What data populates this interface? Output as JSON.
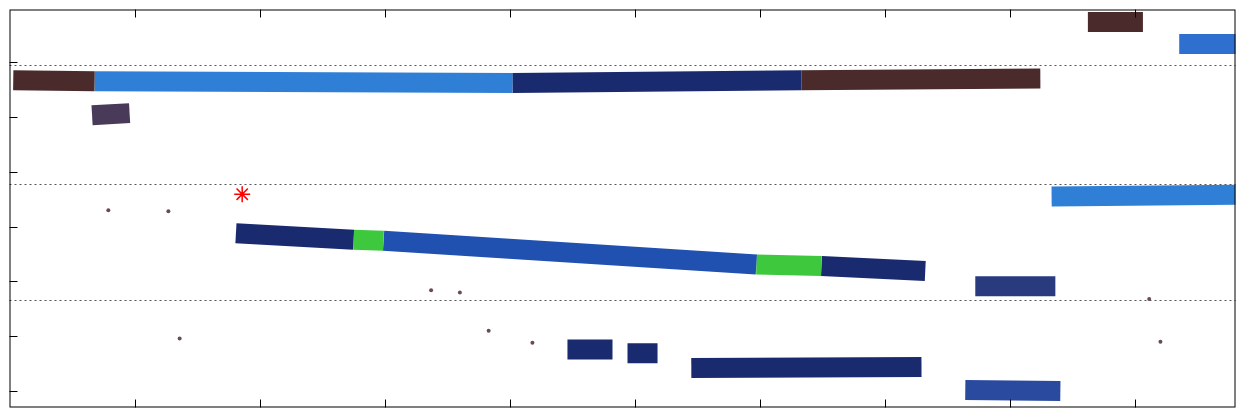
{
  "chart_data": {
    "type": "line",
    "xlim": [
      0,
      9.8
    ],
    "xticks": [
      1,
      2,
      3,
      4,
      5,
      6,
      7,
      8,
      9
    ],
    "ylim": [
      0,
      7.26
    ],
    "yticks": [
      0.3,
      1.3,
      2.3,
      3.3,
      4.3,
      5.3,
      6.3
    ],
    "tick_labels": false,
    "grid": false,
    "hlines": [
      6.24,
      4.08,
      1.96
    ],
    "series": [
      {
        "color": "#4a2a2a",
        "x": [
          0.03,
          0.68
        ],
        "values": [
          5.97,
          5.95
        ]
      },
      {
        "color": "#2f7fd6",
        "x": [
          0.68,
          4.02
        ],
        "values": [
          5.95,
          5.92
        ]
      },
      {
        "color": "#1a2a6e",
        "x": [
          4.02,
          6.33
        ],
        "values": [
          5.92,
          5.97
        ]
      },
      {
        "color": "#4a2a2a",
        "x": [
          6.33,
          8.24
        ],
        "values": [
          5.97,
          6.0
        ]
      },
      {
        "color": "#4a3a5a",
        "x": [
          0.66,
          0.96
        ],
        "values": [
          5.33,
          5.37
        ]
      },
      {
        "color": "#4a2a2a",
        "x": [
          8.62,
          9.06
        ],
        "values": [
          7.03,
          7.03
        ]
      },
      {
        "color": "#2f6fd0",
        "x": [
          9.35,
          9.85
        ],
        "values": [
          6.63,
          6.63
        ]
      },
      {
        "color": "#2f7fd6",
        "x": [
          8.33,
          9.85
        ],
        "values": [
          3.85,
          3.88
        ]
      },
      {
        "color": "#1a2a6e",
        "x": [
          1.81,
          2.75
        ],
        "values": [
          3.18,
          3.06
        ]
      },
      {
        "color": "#3ec83e",
        "x": [
          2.75,
          2.99
        ],
        "values": [
          3.06,
          3.04
        ]
      },
      {
        "color": "#2050b0",
        "x": [
          2.99,
          5.97
        ],
        "values": [
          3.04,
          2.61
        ]
      },
      {
        "color": "#3ec83e",
        "x": [
          5.97,
          6.49
        ],
        "values": [
          2.61,
          2.58
        ]
      },
      {
        "color": "#1a2a6e",
        "x": [
          6.49,
          7.32
        ],
        "values": [
          2.58,
          2.49
        ]
      },
      {
        "color": "#2a3a7e",
        "x": [
          7.72,
          8.36
        ],
        "values": [
          2.21,
          2.21
        ]
      },
      {
        "color": "#1a2a6e",
        "x": [
          4.46,
          4.82
        ],
        "values": [
          1.06,
          1.06
        ]
      },
      {
        "color": "#1a2a6e",
        "x": [
          4.94,
          5.18
        ],
        "values": [
          0.99,
          0.99
        ]
      },
      {
        "color": "#1a2a6e",
        "x": [
          5.45,
          7.29
        ],
        "values": [
          0.72,
          0.74
        ]
      },
      {
        "color": "#2a4aa0",
        "x": [
          7.64,
          8.4
        ],
        "values": [
          0.32,
          0.3
        ]
      },
      {
        "type": "scatter",
        "marker": "circle",
        "color": "#6a4a5a",
        "x": [
          0.79,
          1.27,
          3.37,
          3.6,
          3.83,
          4.18,
          1.36,
          9.11,
          9.2
        ],
        "values": [
          3.6,
          3.58,
          2.14,
          2.1,
          1.4,
          1.18,
          1.26,
          1.98,
          1.2
        ]
      },
      {
        "type": "scatter",
        "marker": "star",
        "color": "#ff0000",
        "x": [
          1.86
        ],
        "values": [
          3.89
        ]
      }
    ]
  }
}
